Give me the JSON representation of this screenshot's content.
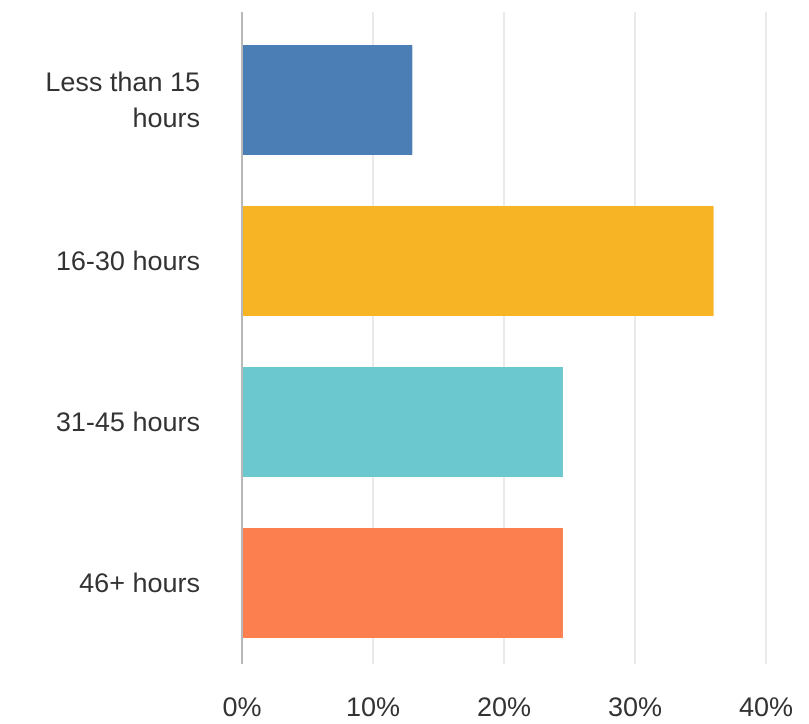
{
  "chart_data": {
    "type": "bar",
    "orientation": "horizontal",
    "title": "",
    "xlabel": "",
    "ylabel": "",
    "categories": [
      [
        "Less than 15",
        "hours"
      ],
      [
        "16-30 hours"
      ],
      [
        "31-45 hours"
      ],
      [
        "46+ hours"
      ]
    ],
    "values": [
      13,
      36,
      24.5,
      24.5
    ],
    "colors": [
      "#4a7eb5",
      "#f7b526",
      "#6cc8cf",
      "#fc7f4f"
    ],
    "xlim": [
      0,
      40
    ],
    "ticks": [
      0,
      10,
      20,
      30,
      40
    ],
    "tick_labels": [
      "0%",
      "10%",
      "20%",
      "30%",
      "40%"
    ],
    "grid": true,
    "legend": "none"
  }
}
